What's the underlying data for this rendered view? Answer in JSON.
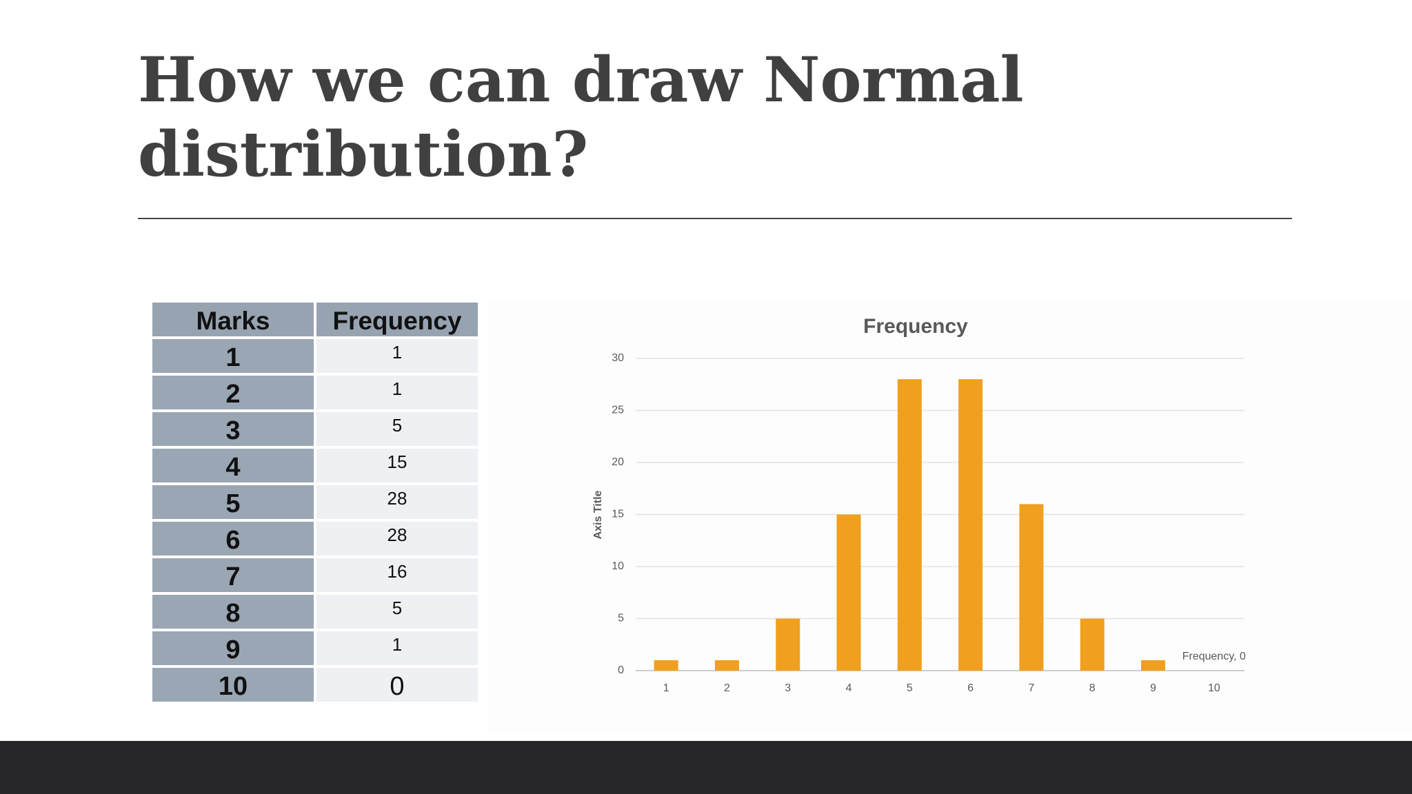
{
  "title": "How we can draw Normal distribution?",
  "table": {
    "header": [
      "Marks",
      "Frequency"
    ],
    "rows": [
      [
        1,
        1
      ],
      [
        2,
        1
      ],
      [
        3,
        5
      ],
      [
        4,
        15
      ],
      [
        5,
        28
      ],
      [
        6,
        28
      ],
      [
        7,
        16
      ],
      [
        8,
        5
      ],
      [
        9,
        1
      ],
      [
        10,
        0
      ]
    ]
  },
  "chart_data": {
    "type": "bar",
    "title": "Frequency",
    "y_label": "Axis Title",
    "categories": [
      1,
      2,
      3,
      4,
      5,
      6,
      7,
      8,
      9,
      10
    ],
    "values": [
      1,
      1,
      5,
      15,
      28,
      28,
      16,
      5,
      1,
      0
    ],
    "value_labels": [
      null,
      null,
      null,
      null,
      null,
      null,
      null,
      null,
      null,
      "Frequency, 0"
    ],
    "color": "#f0a01e",
    "ylim": [
      0,
      30
    ],
    "yticks": [
      0,
      5,
      10,
      15,
      20,
      25,
      30
    ],
    "grid": true
  }
}
